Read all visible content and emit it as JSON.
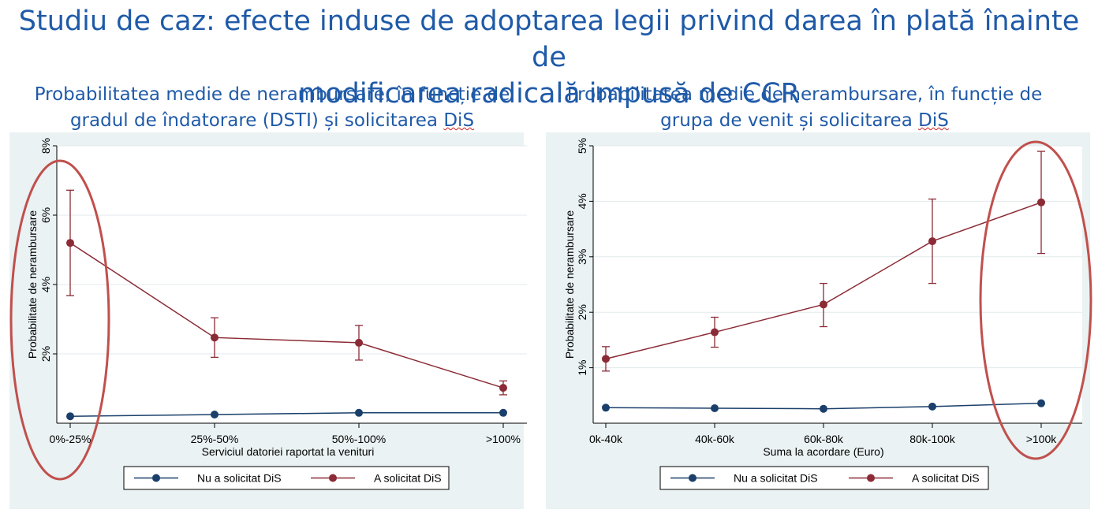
{
  "page": {
    "title_line1": "Studiu de caz: efecte induse de adoptarea legii privind darea în plată înainte de",
    "title_line2": "modificarea radicală impusă de CCR"
  },
  "left": {
    "subtitle_line1": "Probabilitatea medie de nerambursare, în funcție de",
    "subtitle_line2_pre": "gradul de îndatorare (DSTI) și solicitarea ",
    "subtitle_line2_mark": "DiS"
  },
  "right": {
    "subtitle_line1": "Probabilitatea medie de nerambursare, în funcție de",
    "subtitle_line2_pre": "grupa de venit și solicitarea ",
    "subtitle_line2_mark": "DiS"
  },
  "colors": {
    "nu_series": "#1a3f6b",
    "a_series": "#8b2b35",
    "highlight_ellipse": "#c0504d",
    "title_blue": "#1f5aa8"
  },
  "chart_data": [
    {
      "type": "line",
      "categories": [
        "0%-25%",
        "25%-50%",
        "50%-100%",
        ">100%"
      ],
      "xlabel": "Serviciul datoriei raportat la venituri",
      "ylabel": "Probabilitate de nerambursare",
      "ylim": [
        0,
        8
      ],
      "yticks": [
        2,
        4,
        6,
        8
      ],
      "ytick_labels": [
        "2%",
        "4%",
        "6%",
        "8%"
      ],
      "grid": true,
      "legend_position": "bottom",
      "series": [
        {
          "name": "Nu a solicitat DiS",
          "values": [
            0.2,
            0.25,
            0.3,
            0.3
          ]
        },
        {
          "name": "A solicitat DiS",
          "values": [
            5.2,
            2.47,
            2.32,
            1.02
          ],
          "ci_low": [
            3.68,
            1.9,
            1.82,
            0.82
          ],
          "ci_high": [
            6.72,
            3.04,
            2.82,
            1.22
          ]
        }
      ],
      "highlight": "0%-25%"
    },
    {
      "type": "line",
      "categories": [
        "0k-40k",
        "40k-60k",
        "60k-80k",
        "80k-100k",
        ">100k"
      ],
      "xlabel": "Suma la acordare (Euro)",
      "ylabel": "Probabilitate de nerambursare",
      "ylim": [
        0,
        5
      ],
      "yticks": [
        1,
        2,
        3,
        4,
        5
      ],
      "ytick_labels": [
        "1%",
        "2%",
        "3%",
        "4%",
        "5%"
      ],
      "grid": true,
      "legend_position": "bottom",
      "series": [
        {
          "name": "Nu a solicitat DiS",
          "values": [
            0.28,
            0.27,
            0.26,
            0.3,
            0.36
          ]
        },
        {
          "name": "A solicitat DiS",
          "values": [
            1.16,
            1.64,
            2.14,
            3.28,
            3.98
          ],
          "ci_low": [
            0.94,
            1.37,
            1.74,
            2.52,
            3.06
          ],
          "ci_high": [
            1.38,
            1.91,
            2.52,
            4.04,
            4.9
          ]
        }
      ],
      "highlight": ">100k"
    }
  ]
}
